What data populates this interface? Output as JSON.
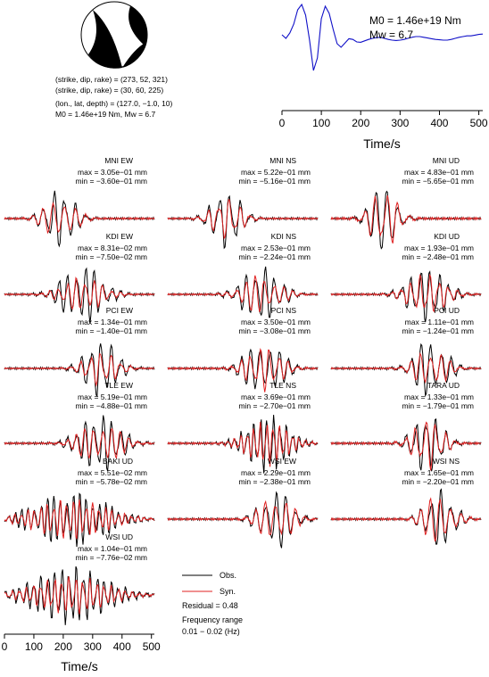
{
  "focal": {
    "lines": [
      "(strike, dip, rake) = (273, 52, 321)",
      "(strike, dip, rake) = (30, 60, 225)",
      "(lon., lat, depth) = (127.0, −1.0, 10)",
      "M0 = 1.46e+19 Nm, Mw = 6.7"
    ]
  },
  "stf": {
    "m0_label": "M0 = 1.46e+19 Nm",
    "mw_label": "Mw = 6.7",
    "xlabel": "Time/s",
    "xticks": [
      "0",
      "100",
      "200",
      "300",
      "400",
      "500"
    ]
  },
  "bottom_axis": {
    "xlabel": "Time/s",
    "xticks": [
      "0",
      "100",
      "200",
      "300",
      "400",
      "500"
    ]
  },
  "legend": {
    "obs": "Obs.",
    "syn": "Syn.",
    "residual": "Residual = 0.48",
    "freq_title": "Frequency range",
    "freq_value": "0.01 − 0.02 (Hz)"
  },
  "colors": {
    "obs": "#000000",
    "syn": "#e02020",
    "stf": "#1010c8"
  },
  "chart_data": {
    "type": "line",
    "x_unit": "s",
    "xlim": [
      0,
      510
    ],
    "source_time_function": {
      "moment_label": "M0 = 1.46e+19 Nm",
      "magnitude_label": "Mw = 6.7",
      "xlabel": "Time/s",
      "xlim": [
        0,
        510
      ],
      "x": [
        0,
        10,
        20,
        30,
        40,
        50,
        60,
        70,
        80,
        90,
        100,
        110,
        120,
        130,
        140,
        150,
        160,
        170,
        180,
        190,
        200,
        210,
        220,
        230,
        240,
        250,
        260,
        270,
        280,
        290,
        300,
        310,
        320,
        330,
        340,
        350,
        360,
        370,
        380,
        390,
        400,
        410,
        420,
        430,
        440,
        450,
        460,
        470,
        480,
        490,
        500,
        510
      ],
      "y": [
        0.15,
        0.05,
        0.2,
        0.45,
        0.85,
        1.0,
        0.7,
        0.0,
        -0.85,
        -0.5,
        0.6,
        0.95,
        0.75,
        0.3,
        -0.1,
        -0.2,
        -0.08,
        0.04,
        0.02,
        -0.05,
        -0.06,
        -0.02,
        0.02,
        0.05,
        0.07,
        0.08,
        0.05,
        0.02,
        0.0,
        -0.01,
        0.0,
        0.02,
        0.05,
        0.08,
        0.1,
        0.1,
        0.08,
        0.06,
        0.04,
        0.02,
        0.01,
        0.0,
        0.0,
        0.02,
        0.05,
        0.08,
        0.1,
        0.12,
        0.12,
        0.14,
        0.16,
        0.17
      ]
    },
    "stations": [
      {
        "station": "MNI EW",
        "max": "max = 3.05e−01 mm",
        "min": "min = −3.60e−01 mm",
        "onset": 100,
        "dur": 200,
        "period": 36,
        "obs_amp": 0.85,
        "syn_amp": 0.7,
        "seed": 1
      },
      {
        "station": "MNI NS",
        "max": "max = 5.22e−01 mm",
        "min": "min = −5.16e−01 mm",
        "onset": 110,
        "dur": 200,
        "period": 36,
        "obs_amp": 0.85,
        "syn_amp": 0.6,
        "seed": 2
      },
      {
        "station": "MNI UD",
        "max": "max = 4.83e−01 mm",
        "min": "min = −5.65e−01 mm",
        "onset": 95,
        "dur": 190,
        "period": 38,
        "obs_amp": 0.9,
        "syn_amp": 0.85,
        "seed": 3
      },
      {
        "station": "KDI EW",
        "max": "max = 8.31e−02 mm",
        "min": "min = −7.50e−02 mm",
        "onset": 140,
        "dur": 280,
        "period": 30,
        "obs_amp": 0.85,
        "syn_amp": 0.5,
        "seed": 4
      },
      {
        "station": "KDI NS",
        "max": "max = 2.53e−01 mm",
        "min": "min = −2.24e−01 mm",
        "onset": 200,
        "dur": 260,
        "period": 32,
        "obs_amp": 0.8,
        "syn_amp": 0.55,
        "seed": 5
      },
      {
        "station": "KDI UD",
        "max": "max = 1.93e−01 mm",
        "min": "min = −2.48e−01 mm",
        "onset": 210,
        "dur": 260,
        "period": 32,
        "obs_amp": 0.8,
        "syn_amp": 0.6,
        "seed": 6
      },
      {
        "station": "PCI EW",
        "max": "max = 1.34e−01 mm",
        "min": "min = −1.40e−01 mm",
        "onset": 230,
        "dur": 220,
        "period": 34,
        "obs_amp": 0.85,
        "syn_amp": 0.5,
        "seed": 7
      },
      {
        "station": "PCI NS",
        "max": "max = 3.50e−01 mm",
        "min": "min = −3.08e−01 mm",
        "onset": 220,
        "dur": 240,
        "period": 32,
        "obs_amp": 0.85,
        "syn_amp": 0.65,
        "seed": 8
      },
      {
        "station": "PCI UD",
        "max": "max = 1.11e−01 mm",
        "min": "min = −1.24e−01 mm",
        "onset": 240,
        "dur": 220,
        "period": 34,
        "obs_amp": 0.85,
        "syn_amp": 0.55,
        "seed": 9
      },
      {
        "station": "TLE EW",
        "max": "max = 5.19e−01 mm",
        "min": "min = −4.88e−01 mm",
        "onset": 200,
        "dur": 280,
        "period": 30,
        "obs_amp": 0.85,
        "syn_amp": 0.6,
        "seed": 10
      },
      {
        "station": "TLE NS",
        "max": "max = 3.69e−01 mm",
        "min": "min = −2.70e−01 mm",
        "onset": 210,
        "dur": 290,
        "period": 22,
        "obs_amp": 0.85,
        "syn_amp": 0.65,
        "seed": 11
      },
      {
        "station": "TARA UD",
        "max": "max = 1.33e−01 mm",
        "min": "min = −1.79e−01 mm",
        "onset": 240,
        "dur": 200,
        "period": 34,
        "obs_amp": 0.9,
        "syn_amp": 0.75,
        "seed": 12
      },
      {
        "station": "BAKI UD",
        "max": "max = 5.51e−02 mm",
        "min": "min = −5.78e−02 mm",
        "onset": 0,
        "dur": 500,
        "period": 22,
        "obs_amp": 0.8,
        "syn_amp": 0.6,
        "seed": 13
      },
      {
        "station": "WSI EW",
        "max": "max = 2.29e−01 mm",
        "min": "min = −2.38e−01 mm",
        "onset": 270,
        "dur": 220,
        "period": 34,
        "obs_amp": 0.85,
        "syn_amp": 0.7,
        "seed": 14
      },
      {
        "station": "WSI NS",
        "max": "max = 1.65e−01 mm",
        "min": "min = −2.20e−01 mm",
        "onset": 280,
        "dur": 200,
        "period": 34,
        "obs_amp": 0.85,
        "syn_amp": 0.75,
        "seed": 15
      },
      {
        "station": "WSI UD",
        "max": "max = 1.04e−01 mm",
        "min": "min = −7.76e−02 mm",
        "onset": 0,
        "dur": 500,
        "period": 24,
        "obs_amp": 0.85,
        "syn_amp": 0.55,
        "seed": 16
      }
    ]
  }
}
